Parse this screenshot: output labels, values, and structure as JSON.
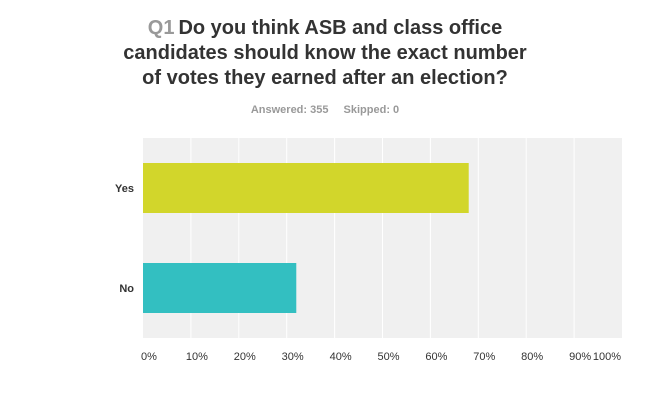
{
  "title": {
    "question_number": "Q1",
    "text_lines": [
      "Do you think ASB and class office",
      "candidates should know the exact number",
      "of votes they earned after an election?"
    ]
  },
  "meta": {
    "answered_label": "Answered: 355",
    "skipped_label": "Skipped: 0"
  },
  "chart_data": {
    "type": "bar",
    "orientation": "horizontal",
    "categories": [
      "Yes",
      "No"
    ],
    "values": [
      68,
      32
    ],
    "value_unit": "percent",
    "colors": [
      "#d2d62b",
      "#33bfc1"
    ],
    "xlim": [
      0,
      100
    ],
    "x_ticks": [
      "0%",
      "10%",
      "20%",
      "30%",
      "40%",
      "50%",
      "60%",
      "70%",
      "80%",
      "90%",
      "100%"
    ],
    "grid": true,
    "plot_background": "#f0f0f0",
    "grid_color": "#ffffff"
  }
}
